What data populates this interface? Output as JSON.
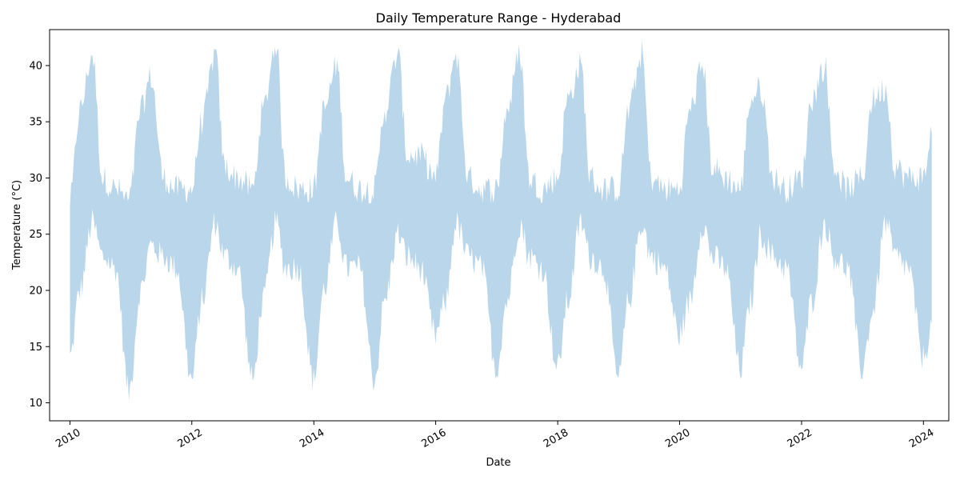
{
  "chart_data": {
    "type": "area",
    "title": "Daily Temperature Range - Hyderabad",
    "xlabel": "Date",
    "ylabel": "Temperature (°C)",
    "x_type": "date",
    "xlim": [
      "2009-09-01",
      "2024-06-01"
    ],
    "ylim": [
      8.4,
      43.2
    ],
    "x_ticks": [
      "2010",
      "2012",
      "2014",
      "2016",
      "2018",
      "2020",
      "2022",
      "2024"
    ],
    "y_ticks": [
      10,
      15,
      20,
      25,
      30,
      35,
      40
    ],
    "grid": false,
    "legend": "none",
    "fill_color": "#bad6ea",
    "series": [
      {
        "x": [
          "2010-01-01",
          "2010-03-01",
          "2010-05-15",
          "2010-07-15",
          "2010-10-01",
          "2010-12-20",
          "2011-03-01",
          "2011-05-01",
          "2011-07-15",
          "2011-10-01",
          "2011-12-31",
          "2012-03-01",
          "2012-05-20",
          "2012-07-15",
          "2012-10-01",
          "2012-12-31",
          "2013-03-01",
          "2013-05-20",
          "2013-07-15",
          "2013-10-01",
          "2013-12-31",
          "2014-03-01",
          "2014-05-20",
          "2014-07-15",
          "2014-10-01",
          "2014-12-31",
          "2015-03-01",
          "2015-05-20",
          "2015-07-15",
          "2015-10-01",
          "2015-12-31",
          "2016-03-01",
          "2016-05-01",
          "2016-07-15",
          "2016-10-01",
          "2016-12-31",
          "2017-03-01",
          "2017-05-20",
          "2017-07-15",
          "2017-10-01",
          "2017-12-31",
          "2018-03-01",
          "2018-05-20",
          "2018-07-15",
          "2018-10-01",
          "2018-12-31",
          "2019-03-01",
          "2019-05-20",
          "2019-07-15",
          "2019-10-01",
          "2019-12-31",
          "2020-03-01",
          "2020-05-20",
          "2020-07-15",
          "2020-10-01",
          "2020-12-31",
          "2021-03-01",
          "2021-05-01",
          "2021-07-15",
          "2021-10-01",
          "2021-12-31",
          "2022-03-01",
          "2022-05-20",
          "2022-07-15",
          "2022-10-01",
          "2022-12-31",
          "2023-03-01",
          "2023-05-20",
          "2023-07-15",
          "2023-10-01",
          "2023-12-31",
          "2024-02-20"
        ],
        "low": [
          14,
          20,
          26,
          23,
          22,
          11,
          20,
          24,
          23,
          22,
          12,
          19,
          26,
          23,
          22,
          12,
          19,
          26,
          22,
          22,
          12,
          20,
          26,
          22,
          22,
          12,
          19,
          25,
          23,
          22,
          16,
          19,
          26,
          23,
          22,
          13,
          19,
          26,
          23,
          22,
          13,
          19,
          26,
          23,
          22,
          12,
          19,
          26,
          23,
          22,
          16,
          19,
          26,
          23,
          22,
          13,
          19,
          25,
          23,
          22,
          13,
          19,
          26,
          23,
          22,
          13,
          18,
          26,
          23,
          22,
          14,
          17
        ],
        "high": [
          28,
          36,
          41,
          30,
          29,
          28,
          36,
          39,
          30,
          29,
          29,
          35,
          41,
          31,
          30,
          29,
          36,
          42,
          30,
          29,
          29,
          36,
          40,
          30,
          29,
          29,
          36,
          41,
          32,
          32,
          30,
          37,
          41,
          30,
          29,
          29,
          36,
          41,
          30,
          29,
          30,
          37,
          40,
          30,
          29,
          29,
          36,
          41,
          30,
          29,
          29,
          36,
          40,
          31,
          30,
          29,
          37,
          38,
          30,
          29,
          30,
          37,
          40,
          31,
          29,
          30,
          37,
          38,
          31,
          30,
          30,
          34
        ]
      }
    ]
  }
}
